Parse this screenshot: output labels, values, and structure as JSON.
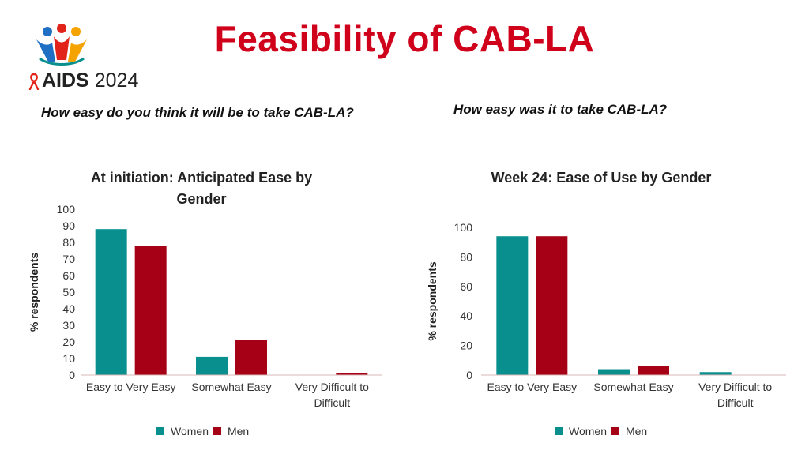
{
  "header": {
    "title": "Feasibility of CAB-LA",
    "logo_text_aids": "AIDS",
    "logo_text_year": "2024"
  },
  "left_panel": {
    "question": "How easy do you think it will be to take CAB-LA?"
  },
  "right_panel": {
    "question": "How easy was it to take CAB-LA?"
  },
  "colors": {
    "women": "#0a8f8f",
    "men": "#a50015",
    "title_red": "#d0021b",
    "axis": "#d9b7b7"
  },
  "chart_data": [
    {
      "type": "bar",
      "title": "At initiation: Anticipated Ease by Gender",
      "title_lines": [
        "At initiation: Anticipated Ease by",
        "Gender"
      ],
      "categories": [
        "Easy to Very Easy",
        "Somewhat Easy",
        "Very Difficult to Difficult"
      ],
      "category_lines": [
        [
          "Easy to Very Easy"
        ],
        [
          "Somewhat Easy"
        ],
        [
          "Very Difficult to",
          "Difficult"
        ]
      ],
      "series": [
        {
          "name": "Women",
          "values": [
            88,
            11,
            0
          ]
        },
        {
          "name": "Men",
          "values": [
            78,
            21,
            1
          ]
        }
      ],
      "xlabel": "",
      "ylabel": "% respondents",
      "ylim": [
        0,
        100
      ],
      "yticks": [
        0,
        10,
        20,
        30,
        40,
        50,
        60,
        70,
        80,
        90,
        100
      ],
      "grid": false,
      "legend": "bottom"
    },
    {
      "type": "bar",
      "title": "Week 24: Ease of Use by Gender",
      "title_lines": [
        "Week 24: Ease of Use by Gender"
      ],
      "categories": [
        "Easy to Very Easy",
        "Somewhat Easy",
        "Very Difficult to Difficult"
      ],
      "category_lines": [
        [
          "Easy to Very Easy"
        ],
        [
          "Somewhat Easy"
        ],
        [
          "Very Difficult to",
          "Difficult"
        ]
      ],
      "series": [
        {
          "name": "Women",
          "values": [
            94,
            4,
            2
          ]
        },
        {
          "name": "Men",
          "values": [
            94,
            6,
            0
          ]
        }
      ],
      "xlabel": "",
      "ylabel": "% respondents",
      "ylim": [
        0,
        100
      ],
      "yticks": [
        0,
        20,
        40,
        60,
        80,
        100
      ],
      "grid": false,
      "legend": "bottom"
    }
  ]
}
